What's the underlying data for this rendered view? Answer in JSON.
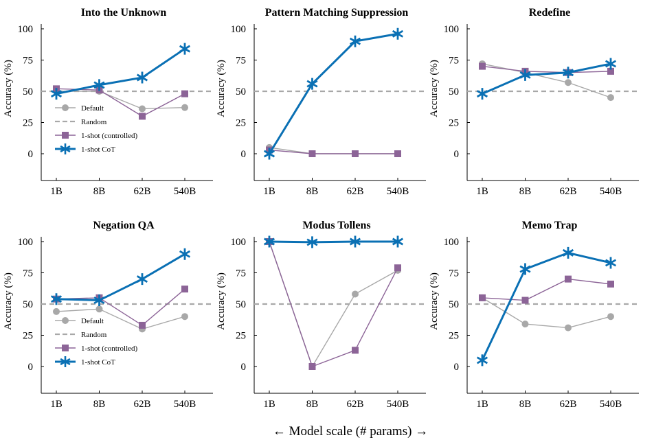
{
  "figure": {
    "bottom_label": "← Model scale (# params) →"
  },
  "colors": {
    "default": "#a8a8a8",
    "random": "#a8a8a8",
    "controlled": "#8c6497",
    "cot": "#0a70b4"
  },
  "chart_data": [
    {
      "type": "line",
      "title": "Into the Unknown",
      "xlabel": "",
      "ylabel": "Accuracy (%)",
      "categories": [
        "1B",
        "8B",
        "62B",
        "540B"
      ],
      "y_ticks": [
        "100",
        "75",
        "50",
        "25",
        "0"
      ],
      "ylim": [
        -10,
        105
      ],
      "legend": {
        "placement": "bottom-left",
        "show": true
      },
      "series": [
        {
          "name": "Default",
          "key": "default",
          "values": [
            50,
            50,
            36,
            37
          ]
        },
        {
          "name": "Random",
          "key": "random",
          "values": [
            50,
            50,
            50,
            50
          ]
        },
        {
          "name": "1-shot (controlled)",
          "key": "controlled",
          "values": [
            52,
            51,
            30,
            48
          ]
        },
        {
          "name": "1-shot CoT",
          "key": "cot",
          "values": [
            48,
            55,
            61,
            84
          ]
        }
      ]
    },
    {
      "type": "line",
      "title": "Pattern Matching Suppression",
      "xlabel": "",
      "ylabel": "Accuracy (%)",
      "categories": [
        "1B",
        "8B",
        "62B",
        "540B"
      ],
      "y_ticks": [
        "100",
        "75",
        "50",
        "25",
        "0"
      ],
      "ylim": [
        -10,
        105
      ],
      "legend": {
        "placement": "none",
        "show": false
      },
      "series": [
        {
          "name": "Default",
          "key": "default",
          "values": [
            5,
            0,
            0,
            0
          ]
        },
        {
          "name": "Random",
          "key": "random",
          "values": [
            50,
            50,
            50,
            50
          ]
        },
        {
          "name": "1-shot (controlled)",
          "key": "controlled",
          "values": [
            3,
            0,
            0,
            0
          ]
        },
        {
          "name": "1-shot CoT",
          "key": "cot",
          "values": [
            0,
            56,
            90,
            96
          ]
        }
      ]
    },
    {
      "type": "line",
      "title": "Redefine",
      "xlabel": "",
      "ylabel": "Accuracy (%)",
      "categories": [
        "1B",
        "8B",
        "62B",
        "540B"
      ],
      "y_ticks": [
        "100",
        "75",
        "50",
        "25",
        "0"
      ],
      "ylim": [
        -10,
        105
      ],
      "legend": {
        "placement": "none",
        "show": false
      },
      "series": [
        {
          "name": "Default",
          "key": "default",
          "values": [
            72,
            65,
            57,
            45
          ]
        },
        {
          "name": "Random",
          "key": "random",
          "values": [
            50,
            50,
            50,
            50
          ]
        },
        {
          "name": "1-shot (controlled)",
          "key": "controlled",
          "values": [
            70,
            66,
            65,
            66
          ]
        },
        {
          "name": "1-shot CoT",
          "key": "cot",
          "values": [
            48,
            63,
            65,
            72
          ]
        }
      ]
    },
    {
      "type": "line",
      "title": "Negation QA",
      "xlabel": "",
      "ylabel": "Accuracy (%)",
      "categories": [
        "1B",
        "8B",
        "62B",
        "540B"
      ],
      "y_ticks": [
        "100",
        "75",
        "50",
        "25",
        "0"
      ],
      "ylim": [
        -10,
        105
      ],
      "legend": {
        "placement": "bottom-left",
        "show": true
      },
      "series": [
        {
          "name": "Default",
          "key": "default",
          "values": [
            44,
            46,
            30,
            40
          ]
        },
        {
          "name": "Random",
          "key": "random",
          "values": [
            50,
            50,
            50,
            50
          ]
        },
        {
          "name": "1-shot (controlled)",
          "key": "controlled",
          "values": [
            54,
            55,
            33,
            62
          ]
        },
        {
          "name": "1-shot CoT",
          "key": "cot",
          "values": [
            54,
            53,
            70,
            90
          ]
        }
      ]
    },
    {
      "type": "line",
      "title": "Modus Tollens",
      "xlabel": "",
      "ylabel": "Accuracy (%)",
      "categories": [
        "1B",
        "8B",
        "62B",
        "540B"
      ],
      "y_ticks": [
        "100",
        "75",
        "50",
        "25",
        "0"
      ],
      "ylim": [
        -10,
        105
      ],
      "legend": {
        "placement": "none",
        "show": false
      },
      "series": [
        {
          "name": "Default",
          "key": "default",
          "values": [
            100,
            0,
            58,
            77
          ]
        },
        {
          "name": "Random",
          "key": "random",
          "values": [
            50,
            50,
            50,
            50
          ]
        },
        {
          "name": "1-shot (controlled)",
          "key": "controlled",
          "values": [
            100,
            0,
            13,
            79
          ]
        },
        {
          "name": "1-shot CoT",
          "key": "cot",
          "values": [
            100,
            99.5,
            100,
            100
          ]
        }
      ]
    },
    {
      "type": "line",
      "title": "Memo Trap",
      "xlabel": "",
      "ylabel": "Accuracy (%)",
      "categories": [
        "1B",
        "8B",
        "62B",
        "540B"
      ],
      "y_ticks": [
        "100",
        "75",
        "50",
        "25",
        "0"
      ],
      "ylim": [
        -10,
        105
      ],
      "legend": {
        "placement": "none",
        "show": false
      },
      "series": [
        {
          "name": "Default",
          "key": "default",
          "values": [
            55,
            34,
            31,
            40
          ]
        },
        {
          "name": "Random",
          "key": "random",
          "values": [
            50,
            50,
            50,
            50
          ]
        },
        {
          "name": "1-shot (controlled)",
          "key": "controlled",
          "values": [
            55,
            53,
            70,
            66
          ]
        },
        {
          "name": "1-shot CoT",
          "key": "cot",
          "values": [
            5,
            78,
            91,
            83
          ]
        }
      ]
    }
  ]
}
